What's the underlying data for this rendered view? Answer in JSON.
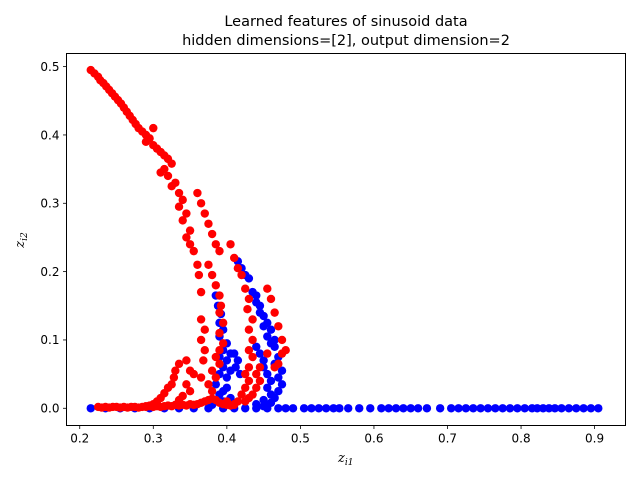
{
  "chart_data": {
    "type": "scatter",
    "title_line1": "Learned features of sinusoid data",
    "title_line2": "hidden dimensions=[2], output dimension=2",
    "xlabel": "z",
    "xlabel_sub": "i1",
    "ylabel": "z",
    "ylabel_sub": "i2",
    "xlim": [
      0.182,
      0.942
    ],
    "ylim": [
      -0.0252,
      0.5192
    ],
    "xticks": [
      0.2,
      0.3,
      0.4,
      0.5,
      0.6,
      0.7,
      0.8,
      0.9
    ],
    "xtick_labels": [
      "0.2",
      "0.3",
      "0.4",
      "0.5",
      "0.6",
      "0.7",
      "0.8",
      "0.9"
    ],
    "yticks": [
      0.0,
      0.1,
      0.2,
      0.3,
      0.4,
      0.5
    ],
    "ytick_labels": [
      "0.0",
      "0.1",
      "0.2",
      "0.3",
      "0.4",
      "0.5"
    ],
    "series": [
      {
        "name": "blue",
        "color": "#0000ff",
        "points": [
          [
            0.215,
            0.0
          ],
          [
            0.235,
            0.0
          ],
          [
            0.255,
            0.0
          ],
          [
            0.275,
            0.0
          ],
          [
            0.295,
            0.0
          ],
          [
            0.315,
            0.0
          ],
          [
            0.335,
            0.0
          ],
          [
            0.355,
            0.0
          ],
          [
            0.375,
            0.0
          ],
          [
            0.395,
            0.0
          ],
          [
            0.41,
            0.0
          ],
          [
            0.425,
            0.0
          ],
          [
            0.44,
            0.0
          ],
          [
            0.455,
            0.0
          ],
          [
            0.47,
            0.0
          ],
          [
            0.48,
            0.0
          ],
          [
            0.49,
            0.0
          ],
          [
            0.505,
            0.0
          ],
          [
            0.515,
            0.0
          ],
          [
            0.525,
            0.0
          ],
          [
            0.535,
            0.0
          ],
          [
            0.545,
            0.0
          ],
          [
            0.553,
            0.0
          ],
          [
            0.565,
            0.0
          ],
          [
            0.58,
            0.0
          ],
          [
            0.595,
            0.0
          ],
          [
            0.61,
            0.0
          ],
          [
            0.62,
            0.0
          ],
          [
            0.63,
            0.0
          ],
          [
            0.64,
            0.0
          ],
          [
            0.65,
            0.0
          ],
          [
            0.66,
            0.0
          ],
          [
            0.672,
            0.0
          ],
          [
            0.69,
            0.0
          ],
          [
            0.705,
            0.0
          ],
          [
            0.715,
            0.0
          ],
          [
            0.725,
            0.0
          ],
          [
            0.735,
            0.0
          ],
          [
            0.745,
            0.0
          ],
          [
            0.755,
            0.0
          ],
          [
            0.765,
            0.0
          ],
          [
            0.775,
            0.0
          ],
          [
            0.785,
            0.0
          ],
          [
            0.795,
            0.0
          ],
          [
            0.805,
            0.0
          ],
          [
            0.815,
            0.0
          ],
          [
            0.822,
            0.0
          ],
          [
            0.83,
            0.0
          ],
          [
            0.838,
            0.0
          ],
          [
            0.846,
            0.0
          ],
          [
            0.855,
            0.0
          ],
          [
            0.865,
            0.0
          ],
          [
            0.875,
            0.0
          ],
          [
            0.885,
            0.0
          ],
          [
            0.895,
            0.0
          ],
          [
            0.905,
            0.0
          ],
          [
            0.38,
            0.005
          ],
          [
            0.395,
            0.01
          ],
          [
            0.405,
            0.015
          ],
          [
            0.39,
            0.02
          ],
          [
            0.395,
            0.025
          ],
          [
            0.4,
            0.03
          ],
          [
            0.385,
            0.035
          ],
          [
            0.4,
            0.045
          ],
          [
            0.39,
            0.05
          ],
          [
            0.405,
            0.055
          ],
          [
            0.395,
            0.06
          ],
          [
            0.4,
            0.07
          ],
          [
            0.39,
            0.075
          ],
          [
            0.405,
            0.08
          ],
          [
            0.395,
            0.085
          ],
          [
            0.4,
            0.095
          ],
          [
            0.39,
            0.105
          ],
          [
            0.395,
            0.115
          ],
          [
            0.39,
            0.125
          ],
          [
            0.392,
            0.138
          ],
          [
            0.388,
            0.15
          ],
          [
            0.385,
            0.165
          ],
          [
            0.41,
            0.08
          ],
          [
            0.415,
            0.07
          ],
          [
            0.412,
            0.06
          ],
          [
            0.418,
            0.05
          ],
          [
            0.415,
            0.215
          ],
          [
            0.42,
            0.205
          ],
          [
            0.425,
            0.195
          ],
          [
            0.43,
            0.19
          ],
          [
            0.435,
            0.17
          ],
          [
            0.44,
            0.155
          ],
          [
            0.445,
            0.14
          ],
          [
            0.45,
            0.12
          ],
          [
            0.455,
            0.105
          ],
          [
            0.46,
            0.095
          ],
          [
            0.465,
            0.09
          ],
          [
            0.47,
            0.075
          ],
          [
            0.465,
            0.065
          ],
          [
            0.475,
            0.055
          ],
          [
            0.47,
            0.045
          ],
          [
            0.475,
            0.035
          ],
          [
            0.47,
            0.025
          ],
          [
            0.465,
            0.015
          ],
          [
            0.46,
            0.008
          ],
          [
            0.455,
            0.005
          ],
          [
            0.45,
            0.003
          ],
          [
            0.44,
            0.09
          ],
          [
            0.445,
            0.08
          ],
          [
            0.45,
            0.07
          ],
          [
            0.45,
            0.06
          ],
          [
            0.455,
            0.05
          ],
          [
            0.46,
            0.04
          ],
          [
            0.455,
            0.03
          ],
          [
            0.46,
            0.02
          ],
          [
            0.45,
            0.012
          ],
          [
            0.44,
            0.006
          ],
          [
            0.44,
            0.165
          ],
          [
            0.445,
            0.15
          ],
          [
            0.45,
            0.135
          ],
          [
            0.455,
            0.125
          ],
          [
            0.46,
            0.115
          ],
          [
            0.465,
            0.1
          ]
        ]
      },
      {
        "name": "red",
        "color": "#ff0000",
        "points": [
          [
            0.215,
            0.495
          ],
          [
            0.22,
            0.49
          ],
          [
            0.225,
            0.485
          ],
          [
            0.228,
            0.48
          ],
          [
            0.232,
            0.476
          ],
          [
            0.236,
            0.471
          ],
          [
            0.24,
            0.466
          ],
          [
            0.244,
            0.461
          ],
          [
            0.248,
            0.456
          ],
          [
            0.252,
            0.451
          ],
          [
            0.256,
            0.446
          ],
          [
            0.26,
            0.44
          ],
          [
            0.264,
            0.434
          ],
          [
            0.268,
            0.428
          ],
          [
            0.272,
            0.422
          ],
          [
            0.276,
            0.416
          ],
          [
            0.28,
            0.41
          ],
          [
            0.285,
            0.405
          ],
          [
            0.29,
            0.4
          ],
          [
            0.29,
            0.39
          ],
          [
            0.295,
            0.395
          ],
          [
            0.3,
            0.385
          ],
          [
            0.3,
            0.41
          ],
          [
            0.305,
            0.38
          ],
          [
            0.31,
            0.375
          ],
          [
            0.315,
            0.37
          ],
          [
            0.32,
            0.365
          ],
          [
            0.325,
            0.358
          ],
          [
            0.31,
            0.345
          ],
          [
            0.315,
            0.35
          ],
          [
            0.32,
            0.34
          ],
          [
            0.33,
            0.33
          ],
          [
            0.325,
            0.325
          ],
          [
            0.335,
            0.315
          ],
          [
            0.34,
            0.305
          ],
          [
            0.335,
            0.295
          ],
          [
            0.345,
            0.285
          ],
          [
            0.34,
            0.275
          ],
          [
            0.35,
            0.26
          ],
          [
            0.345,
            0.25
          ],
          [
            0.35,
            0.24
          ],
          [
            0.355,
            0.23
          ],
          [
            0.36,
            0.21
          ],
          [
            0.362,
            0.195
          ],
          [
            0.365,
            0.17
          ],
          [
            0.365,
            0.13
          ],
          [
            0.37,
            0.115
          ],
          [
            0.365,
            0.1
          ],
          [
            0.37,
            0.085
          ],
          [
            0.368,
            0.07
          ],
          [
            0.365,
            0.045
          ],
          [
            0.36,
            0.315
          ],
          [
            0.365,
            0.3
          ],
          [
            0.37,
            0.285
          ],
          [
            0.375,
            0.27
          ],
          [
            0.38,
            0.255
          ],
          [
            0.385,
            0.24
          ],
          [
            0.39,
            0.23
          ],
          [
            0.375,
            0.21
          ],
          [
            0.38,
            0.195
          ],
          [
            0.385,
            0.18
          ],
          [
            0.39,
            0.165
          ],
          [
            0.392,
            0.15
          ],
          [
            0.39,
            0.14
          ],
          [
            0.395,
            0.125
          ],
          [
            0.39,
            0.11
          ],
          [
            0.395,
            0.095
          ],
          [
            0.39,
            0.085
          ],
          [
            0.385,
            0.075
          ],
          [
            0.39,
            0.065
          ],
          [
            0.38,
            0.055
          ],
          [
            0.385,
            0.045
          ],
          [
            0.375,
            0.035
          ],
          [
            0.38,
            0.025
          ],
          [
            0.405,
            0.24
          ],
          [
            0.41,
            0.22
          ],
          [
            0.415,
            0.205
          ],
          [
            0.42,
            0.195
          ],
          [
            0.425,
            0.175
          ],
          [
            0.43,
            0.16
          ],
          [
            0.428,
            0.145
          ],
          [
            0.435,
            0.13
          ],
          [
            0.43,
            0.115
          ],
          [
            0.435,
            0.1
          ],
          [
            0.43,
            0.085
          ],
          [
            0.435,
            0.075
          ],
          [
            0.43,
            0.06
          ],
          [
            0.425,
            0.05
          ],
          [
            0.43,
            0.04
          ],
          [
            0.425,
            0.03
          ],
          [
            0.42,
            0.02
          ],
          [
            0.415,
            0.01
          ],
          [
            0.41,
            0.005
          ],
          [
            0.4,
            0.01
          ],
          [
            0.455,
            0.175
          ],
          [
            0.46,
            0.16
          ],
          [
            0.465,
            0.14
          ],
          [
            0.47,
            0.12
          ],
          [
            0.475,
            0.1
          ],
          [
            0.48,
            0.085
          ],
          [
            0.475,
            0.08
          ],
          [
            0.47,
            0.065
          ],
          [
            0.465,
            0.06
          ],
          [
            0.455,
            0.08
          ],
          [
            0.445,
            0.06
          ],
          [
            0.44,
            0.05
          ],
          [
            0.445,
            0.04
          ],
          [
            0.44,
            0.03
          ],
          [
            0.435,
            0.02
          ],
          [
            0.43,
            0.015
          ],
          [
            0.425,
            0.01
          ],
          [
            0.335,
            0.065
          ],
          [
            0.33,
            0.055
          ],
          [
            0.328,
            0.045
          ],
          [
            0.325,
            0.035
          ],
          [
            0.32,
            0.03
          ],
          [
            0.315,
            0.022
          ],
          [
            0.31,
            0.015
          ],
          [
            0.305,
            0.01
          ],
          [
            0.3,
            0.006
          ],
          [
            0.295,
            0.004
          ],
          [
            0.29,
            0.003
          ],
          [
            0.345,
            0.07
          ],
          [
            0.35,
            0.055
          ],
          [
            0.355,
            0.05
          ],
          [
            0.345,
            0.035
          ],
          [
            0.35,
            0.025
          ],
          [
            0.34,
            0.018
          ],
          [
            0.335,
            0.012
          ],
          [
            0.225,
            0.002
          ],
          [
            0.23,
            0.001
          ],
          [
            0.235,
            0.002
          ],
          [
            0.24,
            0.001
          ],
          [
            0.245,
            0.002
          ],
          [
            0.25,
            0.002
          ],
          [
            0.255,
            0.001
          ],
          [
            0.26,
            0.002
          ],
          [
            0.265,
            0.001
          ],
          [
            0.27,
            0.002
          ],
          [
            0.275,
            0.002
          ],
          [
            0.28,
            0.001
          ],
          [
            0.285,
            0.002
          ],
          [
            0.29,
            0.002
          ],
          [
            0.295,
            0.003
          ],
          [
            0.3,
            0.002
          ],
          [
            0.305,
            0.003
          ],
          [
            0.31,
            0.002
          ],
          [
            0.315,
            0.003
          ],
          [
            0.32,
            0.004
          ],
          [
            0.325,
            0.003
          ],
          [
            0.33,
            0.005
          ],
          [
            0.335,
            0.004
          ],
          [
            0.34,
            0.005
          ],
          [
            0.345,
            0.004
          ],
          [
            0.35,
            0.006
          ],
          [
            0.355,
            0.005
          ],
          [
            0.36,
            0.006
          ],
          [
            0.365,
            0.008
          ],
          [
            0.37,
            0.01
          ],
          [
            0.375,
            0.012
          ],
          [
            0.38,
            0.014
          ],
          [
            0.385,
            0.012
          ],
          [
            0.39,
            0.008
          ],
          [
            0.395,
            0.006
          ],
          [
            0.4,
            0.005
          ],
          [
            0.405,
            0.004
          ],
          [
            0.41,
            0.006
          ]
        ]
      }
    ]
  }
}
